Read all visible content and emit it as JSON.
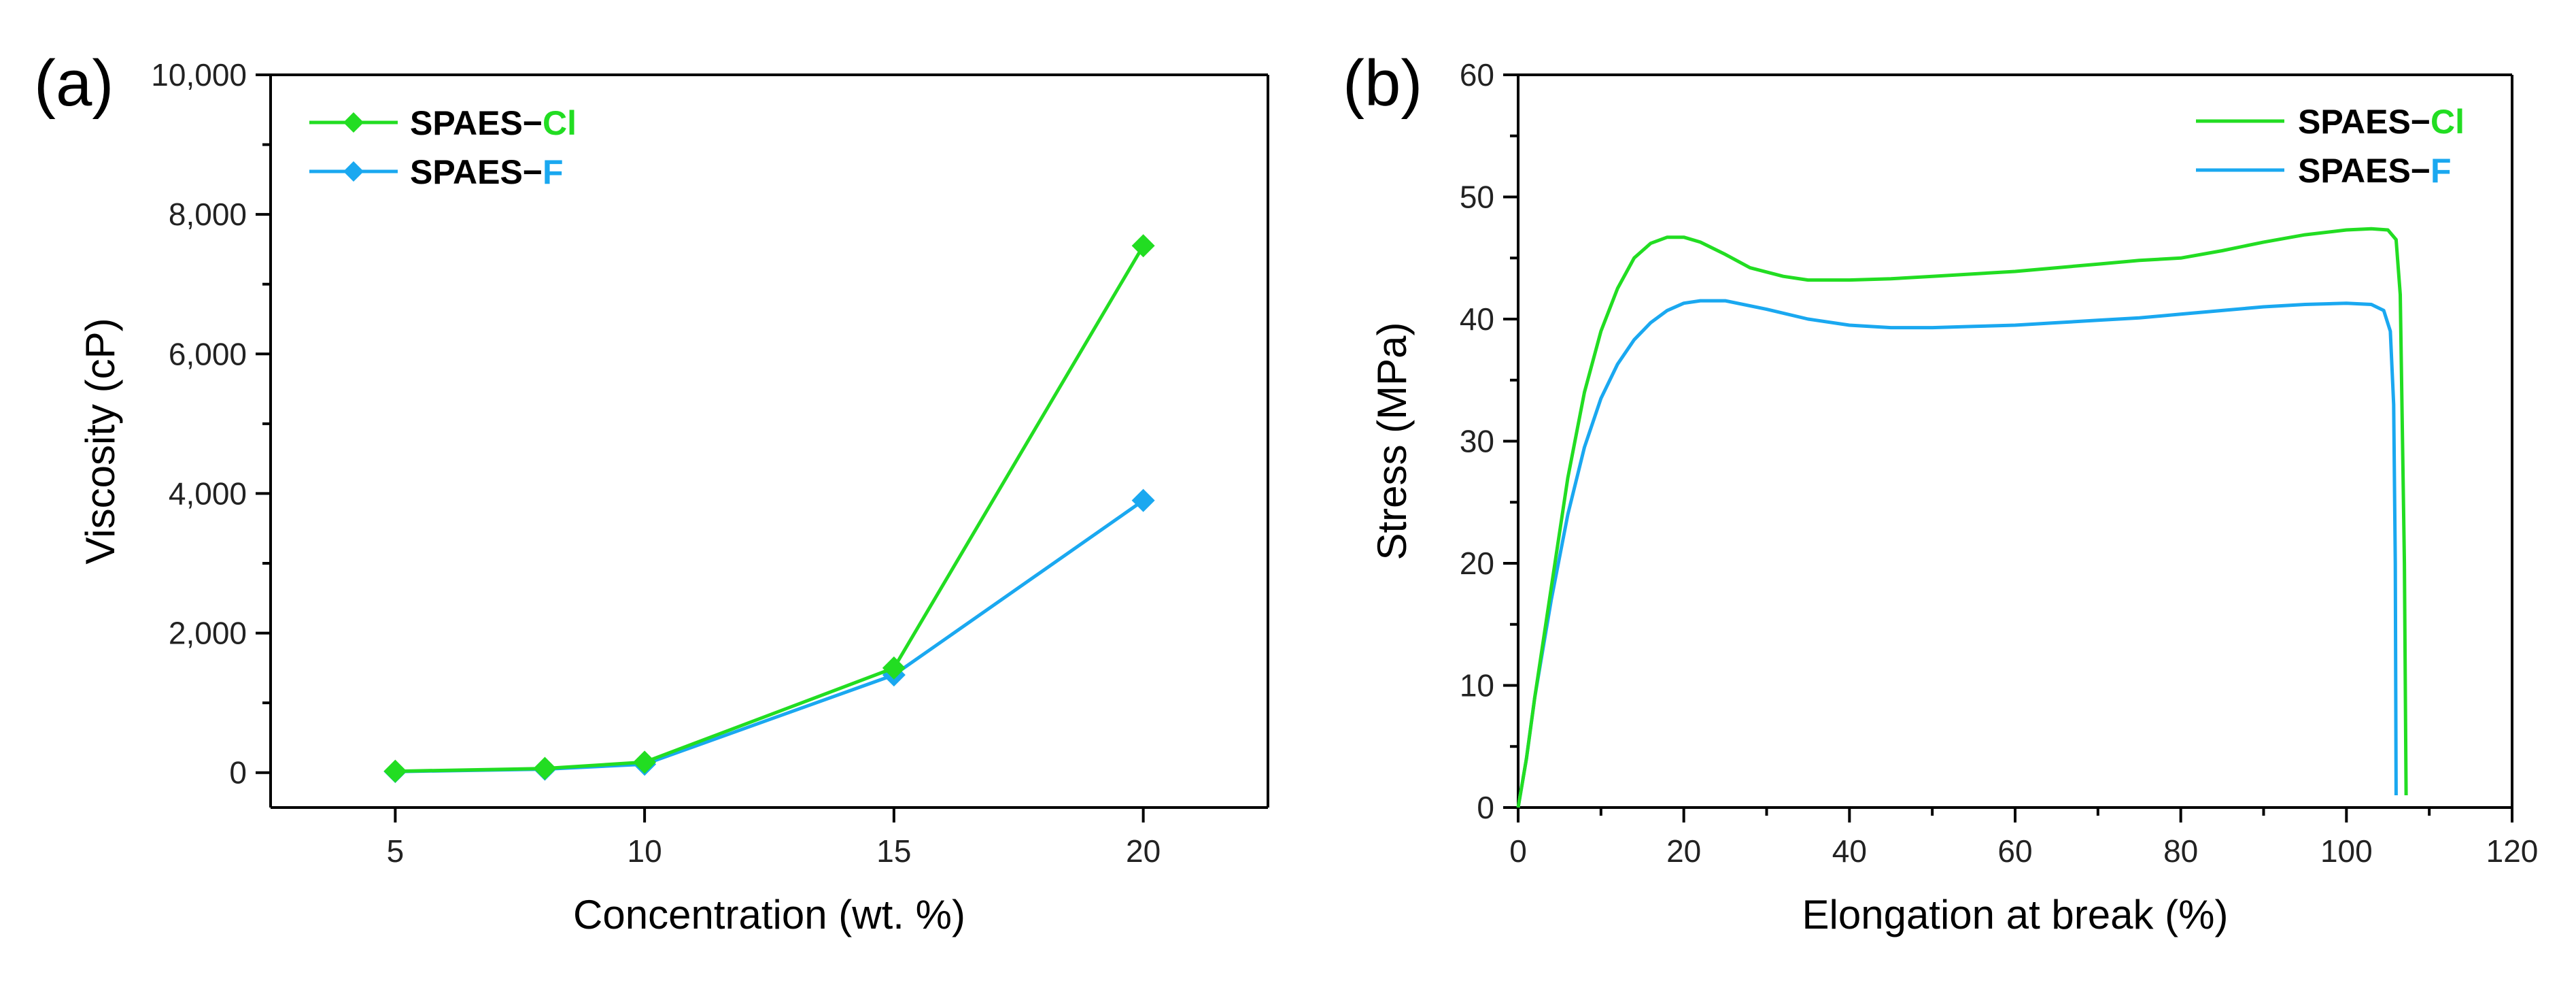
{
  "colors": {
    "cl": "#22dd22",
    "f": "#1aa8f0",
    "axis": "#000000"
  },
  "chart_data": [
    {
      "panel_label": "(a)",
      "type": "line",
      "xlabel": "Concentration (wt. %)",
      "ylabel": "Viscosity (cP)",
      "xlim": [
        2.5,
        22.5
      ],
      "ylim": [
        -500,
        10000
      ],
      "xticks": [
        5,
        10,
        15,
        20
      ],
      "yticks": [
        0,
        2000,
        4000,
        6000,
        8000,
        10000
      ],
      "ytick_labels": [
        "0",
        "2,000",
        "4,000",
        "6,000",
        "8,000",
        "10,000"
      ],
      "legend_position": "top-left",
      "markers": "diamond",
      "series": [
        {
          "name_prefix": "SPAES−",
          "name_suffix": "Cl",
          "color_key": "cl",
          "x": [
            5,
            8,
            10,
            15,
            20
          ],
          "y": [
            20,
            60,
            150,
            1500,
            7550
          ]
        },
        {
          "name_prefix": "SPAES−",
          "name_suffix": "F",
          "color_key": "f",
          "x": [
            5,
            8,
            10,
            15,
            20
          ],
          "y": [
            15,
            50,
            120,
            1400,
            3900
          ]
        }
      ]
    },
    {
      "panel_label": "(b)",
      "type": "line",
      "xlabel": "Elongation at break (%)",
      "ylabel": "Stress (MPa)",
      "xlim": [
        0,
        120
      ],
      "ylim": [
        0,
        60
      ],
      "xticks": [
        0,
        20,
        40,
        60,
        80,
        100,
        120
      ],
      "yticks": [
        0,
        10,
        20,
        30,
        40,
        50,
        60
      ],
      "ytick_labels": [
        "0",
        "10",
        "20",
        "30",
        "40",
        "50",
        "60"
      ],
      "legend_position": "top-right",
      "markers": "none",
      "series": [
        {
          "name_prefix": "SPAES−",
          "name_suffix": "Cl",
          "color_key": "cl",
          "x": [
            0,
            1,
            2,
            4,
            6,
            8,
            10,
            12,
            14,
            16,
            18,
            20,
            22,
            25,
            28,
            32,
            35,
            40,
            45,
            50,
            55,
            60,
            65,
            70,
            75,
            80,
            85,
            90,
            95,
            100,
            103,
            105,
            106,
            106.5,
            107,
            107.2
          ],
          "y": [
            0,
            4,
            9,
            18,
            27,
            34,
            39,
            42.5,
            45,
            46.2,
            46.7,
            46.7,
            46.3,
            45.3,
            44.2,
            43.5,
            43.2,
            43.2,
            43.3,
            43.5,
            43.7,
            43.9,
            44.2,
            44.5,
            44.8,
            45.0,
            45.6,
            46.3,
            46.9,
            47.3,
            47.4,
            47.3,
            46.5,
            42,
            20,
            1
          ]
        },
        {
          "name_prefix": "SPAES−",
          "name_suffix": "F",
          "color_key": "f",
          "x": [
            0,
            1,
            2,
            4,
            6,
            8,
            10,
            12,
            14,
            16,
            18,
            20,
            22,
            25,
            30,
            35,
            40,
            45,
            50,
            55,
            60,
            65,
            70,
            75,
            80,
            85,
            90,
            95,
            100,
            103,
            104.5,
            105.3,
            105.7,
            105.9,
            106
          ],
          "y": [
            0,
            4,
            9,
            17,
            24,
            29.5,
            33.5,
            36.3,
            38.3,
            39.7,
            40.7,
            41.3,
            41.5,
            41.5,
            40.8,
            40.0,
            39.5,
            39.3,
            39.3,
            39.4,
            39.5,
            39.7,
            39.9,
            40.1,
            40.4,
            40.7,
            41.0,
            41.2,
            41.3,
            41.2,
            40.7,
            39,
            33,
            20,
            1
          ]
        }
      ]
    }
  ]
}
